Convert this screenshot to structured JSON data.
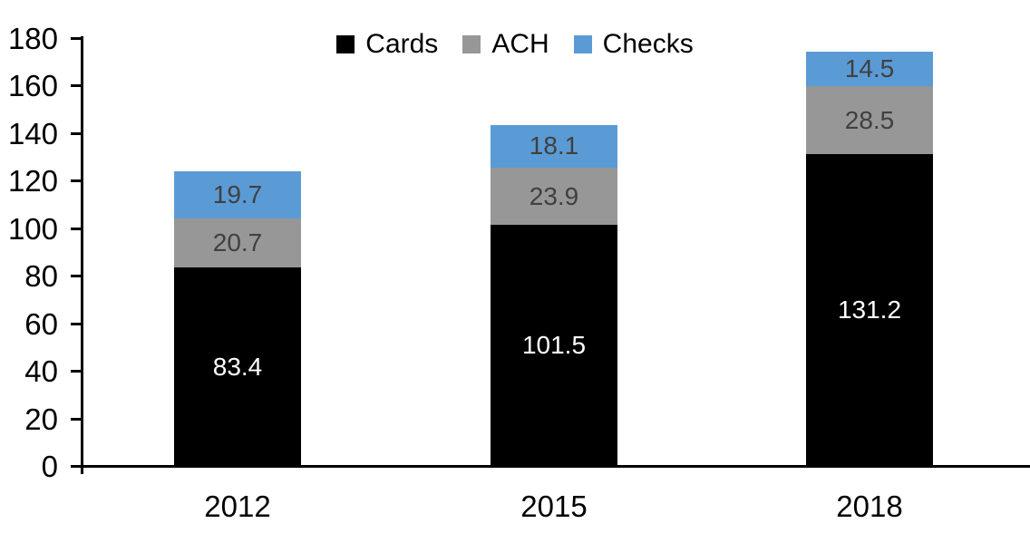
{
  "chart_data": {
    "type": "bar",
    "stacked": true,
    "title": "",
    "xlabel": "",
    "ylabel": "",
    "categories": [
      "2012",
      "2015",
      "2018"
    ],
    "series": [
      {
        "name": "Cards",
        "color": "#000000",
        "label_color": "#ffffff",
        "values": [
          83.4,
          101.5,
          131.2
        ]
      },
      {
        "name": "ACH",
        "color": "#979797",
        "label_color": "#404040",
        "values": [
          20.7,
          23.9,
          28.5
        ]
      },
      {
        "name": "Checks",
        "color": "#5B9BD5",
        "label_color": "#404040",
        "values": [
          19.7,
          18.1,
          14.5
        ]
      }
    ],
    "totals": [
      123.8,
      143.5,
      174.2
    ],
    "ylim": [
      0,
      180
    ],
    "yticks": [
      0,
      20,
      40,
      60,
      80,
      100,
      120,
      140,
      160,
      180
    ],
    "grid": false,
    "legend_position": "top-center",
    "axis_color": "#000000"
  }
}
